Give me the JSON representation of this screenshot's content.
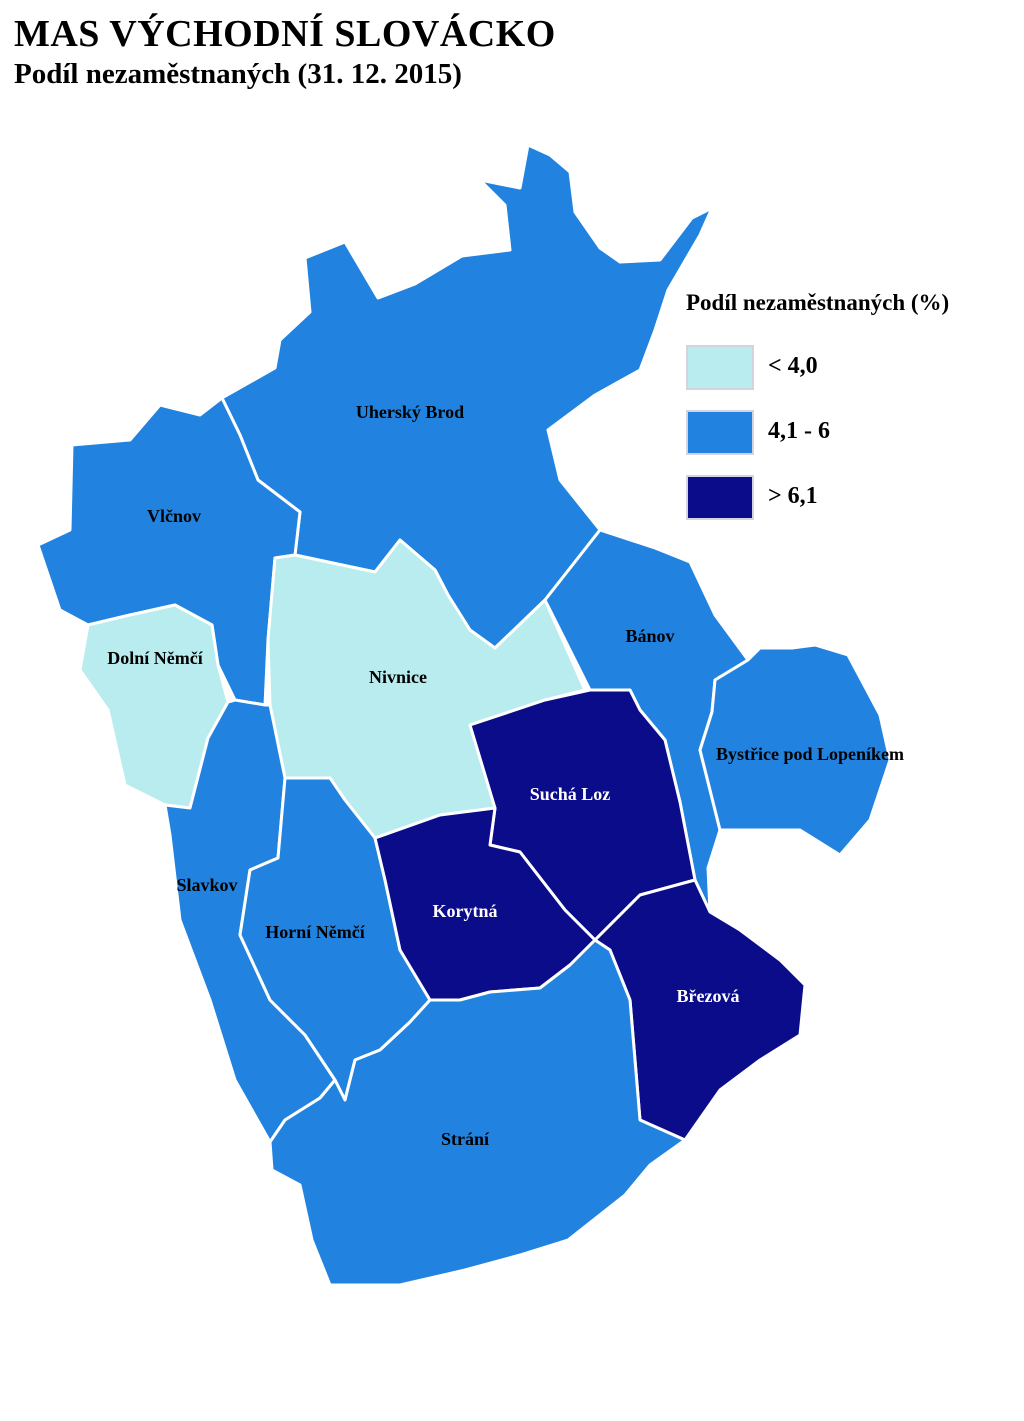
{
  "title": "MAS VÝCHODNÍ SLOVÁCKO",
  "subtitle": "Podíl nezaměstnaných (31. 12. 2015)",
  "legend": {
    "title": "Podíl nezaměstnaných (%)",
    "items": [
      {
        "label": "< 4,0",
        "color": "#b8ecef"
      },
      {
        "label": "4,1 - 6",
        "color": "#2183df"
      },
      {
        "label": "> 6,1",
        "color": "#0b0c8a"
      }
    ]
  },
  "regions": [
    {
      "id": "uhersky-brod",
      "name": "Uherský Brod",
      "class": 1
    },
    {
      "id": "vlcnov",
      "name": "Vlčnov",
      "class": 1
    },
    {
      "id": "dolni-nemci",
      "name": "Dolní Němčí",
      "class": 0
    },
    {
      "id": "nivnice",
      "name": "Nivnice",
      "class": 0
    },
    {
      "id": "banov",
      "name": "Bánov",
      "class": 1
    },
    {
      "id": "bystrice",
      "name": "Bystřice pod Lopeníkem",
      "class": 1
    },
    {
      "id": "sucha-loz",
      "name": "Suchá Loz",
      "class": 2
    },
    {
      "id": "slavkov",
      "name": "Slavkov",
      "class": 1
    },
    {
      "id": "horni-nemci",
      "name": "Horní Němčí",
      "class": 1
    },
    {
      "id": "korytna",
      "name": "Korytná",
      "class": 2
    },
    {
      "id": "brezova",
      "name": "Březová",
      "class": 2
    },
    {
      "id": "strani",
      "name": "Strání",
      "class": 1
    }
  ]
}
